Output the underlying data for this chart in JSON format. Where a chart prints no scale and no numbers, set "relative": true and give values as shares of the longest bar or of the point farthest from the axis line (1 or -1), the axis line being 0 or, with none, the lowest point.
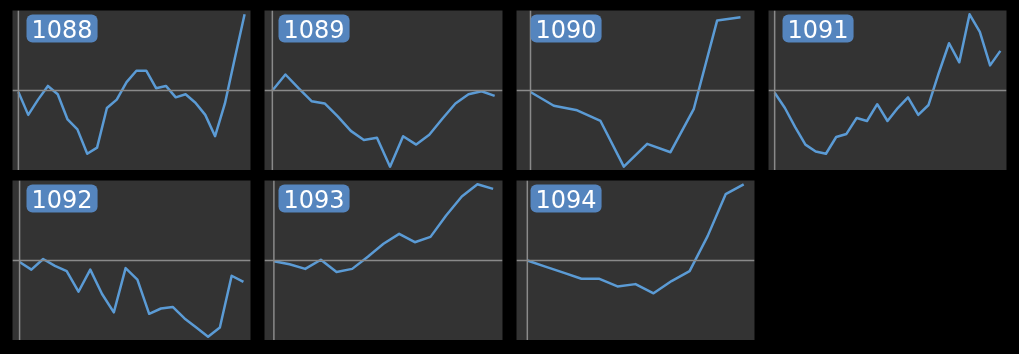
{
  "chart_data": [
    {
      "type": "line",
      "title": "1088",
      "relative": true,
      "color": "#5b9bd5",
      "categories": [
        null,
        null,
        null,
        null,
        null,
        null,
        null,
        null,
        null,
        null,
        null,
        null,
        null,
        null,
        null,
        null,
        null,
        null,
        null,
        null,
        null,
        null,
        null,
        null
      ],
      "values": [
        -0.02,
        -0.32,
        -0.12,
        0.06,
        -0.05,
        -0.38,
        -0.51,
        -0.83,
        -0.75,
        -0.23,
        -0.12,
        0.11,
        0.26,
        0.26,
        0.03,
        0.06,
        -0.09,
        -0.05,
        -0.16,
        -0.32,
        -0.6,
        -0.17,
        0.42,
        1
      ]
    },
    {
      "type": "line",
      "title": "1089",
      "relative": true,
      "color": "#5b9bd5",
      "categories": [
        null,
        null,
        null,
        null,
        null,
        null,
        null,
        null,
        null,
        null,
        null,
        null,
        null,
        null,
        null,
        null,
        null,
        null
      ],
      "values": [
        0,
        0.21,
        0.03,
        -0.14,
        -0.17,
        -0.34,
        -0.53,
        -0.65,
        -0.62,
        -1,
        -0.6,
        -0.71,
        -0.58,
        -0.37,
        -0.17,
        -0.05,
        -0.01,
        -0.07
      ]
    },
    {
      "type": "line",
      "title": "1090",
      "relative": true,
      "color": "#5b9bd5",
      "categories": [
        null,
        null,
        null,
        null,
        null,
        null,
        null,
        null,
        null,
        null
      ],
      "values": [
        -0.02,
        -0.2,
        -0.26,
        -0.4,
        -1,
        -0.7,
        -0.81,
        -0.24,
        0.92,
        0.96
      ]
    },
    {
      "type": "line",
      "title": "1091",
      "relative": true,
      "color": "#5b9bd5",
      "categories": [
        null,
        null,
        null,
        null,
        null,
        null,
        null,
        null,
        null,
        null,
        null,
        null,
        null,
        null,
        null,
        null,
        null,
        null,
        null,
        null,
        null,
        null,
        null
      ],
      "values": [
        -0.03,
        -0.23,
        -0.48,
        -0.71,
        -0.8,
        -0.83,
        -0.61,
        -0.57,
        -0.36,
        -0.4,
        -0.18,
        -0.4,
        -0.23,
        -0.09,
        -0.32,
        -0.19,
        0.23,
        0.62,
        0.37,
        1,
        0.77,
        0.33,
        0.52
      ]
    },
    {
      "type": "line",
      "title": "1092",
      "relative": true,
      "color": "#5b9bd5",
      "categories": [
        null,
        null,
        null,
        null,
        null,
        null,
        null,
        null,
        null,
        null,
        null,
        null,
        null,
        null,
        null,
        null,
        null,
        null,
        null,
        null
      ],
      "values": [
        -0.02,
        -0.12,
        0.02,
        -0.07,
        -0.14,
        -0.41,
        -0.12,
        -0.44,
        -0.68,
        -0.1,
        -0.25,
        -0.7,
        -0.63,
        -0.61,
        -0.76,
        -0.88,
        -1,
        -0.88,
        -0.2,
        -0.28
      ]
    },
    {
      "type": "line",
      "title": "1093",
      "relative": true,
      "color": "#5b9bd5",
      "categories": [
        null,
        null,
        null,
        null,
        null,
        null,
        null,
        null,
        null,
        null,
        null,
        null,
        null,
        null,
        null
      ],
      "values": [
        -0.01,
        -0.05,
        -0.11,
        0.01,
        -0.15,
        -0.11,
        0.05,
        0.22,
        0.35,
        0.24,
        0.31,
        0.59,
        0.84,
        1,
        0.94
      ]
    },
    {
      "type": "line",
      "title": "1094",
      "relative": true,
      "color": "#5b9bd5",
      "categories": [
        null,
        null,
        null,
        null,
        null,
        null,
        null,
        null,
        null,
        null,
        null,
        null,
        null
      ],
      "values": [
        0,
        -0.08,
        -0.16,
        -0.24,
        -0.24,
        -0.34,
        -0.31,
        -0.43,
        -0.27,
        -0.14,
        0.32,
        0.87,
        1
      ]
    }
  ]
}
